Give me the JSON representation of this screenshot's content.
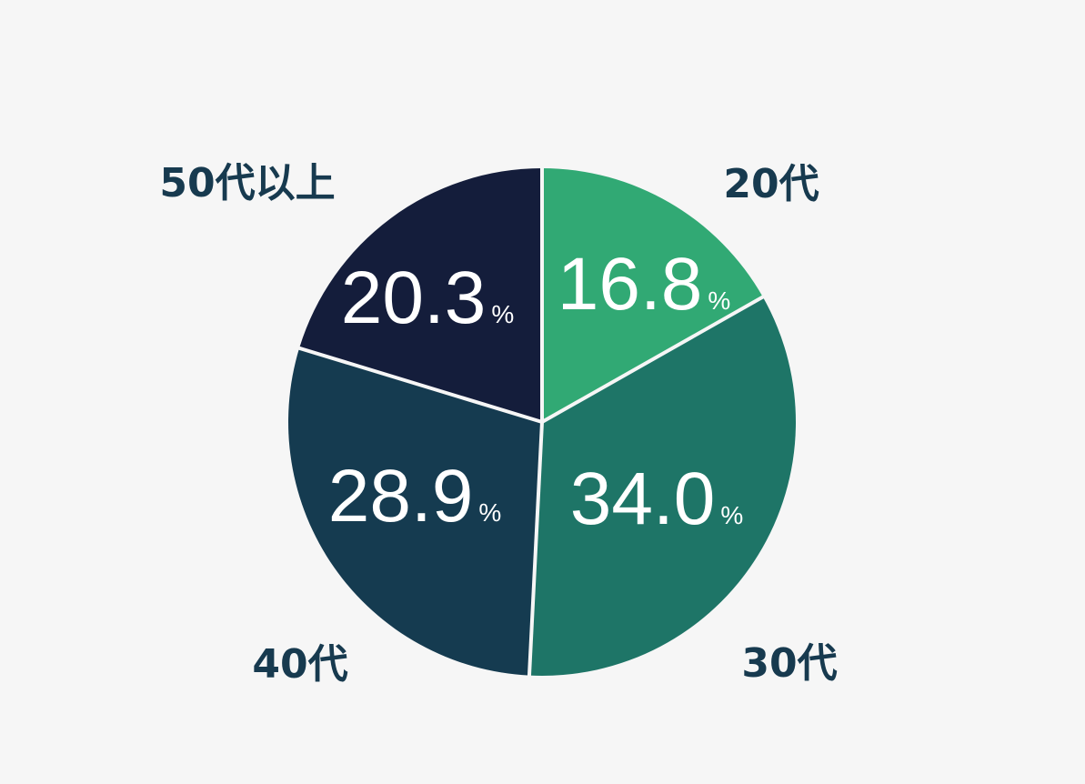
{
  "chart_data": {
    "type": "pie",
    "categories": [
      "20代",
      "30代",
      "40代",
      "50代以上"
    ],
    "values": [
      16.8,
      34.0,
      28.9,
      20.3
    ],
    "value_labels": [
      "16.8",
      "34.0",
      "28.9",
      "20.3"
    ],
    "unit": "%",
    "start_angle": "12 o'clock",
    "direction": "clockwise",
    "colors": [
      "#31a974",
      "#1e7567",
      "#153b50",
      "#141d3b"
    ],
    "separator_color": "#f6f6f6",
    "label_color": "#173a4f",
    "value_label_color": "#ffffff",
    "title": "",
    "legend": "none"
  }
}
